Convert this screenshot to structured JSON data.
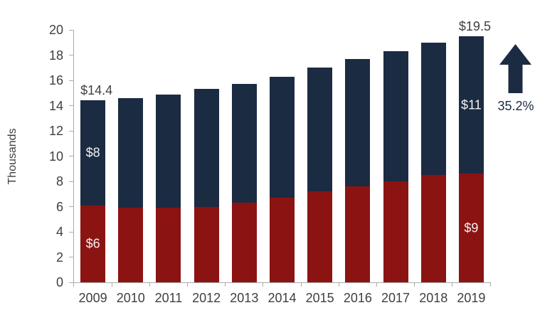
{
  "chart_data": {
    "type": "bar",
    "stacked": true,
    "title": "",
    "xlabel": "",
    "ylabel": "Thousands",
    "ylim": [
      0,
      20
    ],
    "yticks": [
      0,
      2,
      4,
      6,
      8,
      10,
      12,
      14,
      16,
      18,
      20
    ],
    "grid": false,
    "legend": "none",
    "categories": [
      "2009",
      "2010",
      "2011",
      "2012",
      "2013",
      "2014",
      "2015",
      "2016",
      "2017",
      "2018",
      "2019"
    ],
    "series": [
      {
        "name": "red-bottom",
        "color": "#8b1413",
        "values": [
          6.1,
          5.9,
          5.9,
          6.0,
          6.3,
          6.7,
          7.2,
          7.6,
          8.0,
          8.5,
          8.6
        ]
      },
      {
        "name": "navy-top",
        "color": "#1b2b42",
        "values": [
          8.3,
          8.7,
          9.0,
          9.3,
          9.4,
          9.6,
          9.8,
          10.1,
          10.3,
          10.5,
          10.9
        ]
      }
    ],
    "totals": [
      14.4,
      14.6,
      14.9,
      15.3,
      15.7,
      16.3,
      17.0,
      17.7,
      18.3,
      19.0,
      19.5
    ],
    "total_labels": [
      {
        "category": "2009",
        "text": "$14.4"
      },
      {
        "category": "2019",
        "text": "$19.5"
      }
    ],
    "segment_labels": [
      {
        "category": "2009",
        "series": "navy-top",
        "text": "$8"
      },
      {
        "category": "2009",
        "series": "red-bottom",
        "text": "$6"
      },
      {
        "category": "2019",
        "series": "navy-top",
        "text": "$11"
      },
      {
        "category": "2019",
        "series": "red-bottom",
        "text": "$9"
      }
    ]
  },
  "annotations": {
    "percent_change": "35.2%",
    "arrow_direction": "up",
    "arrow_color": "#1b2b42"
  }
}
